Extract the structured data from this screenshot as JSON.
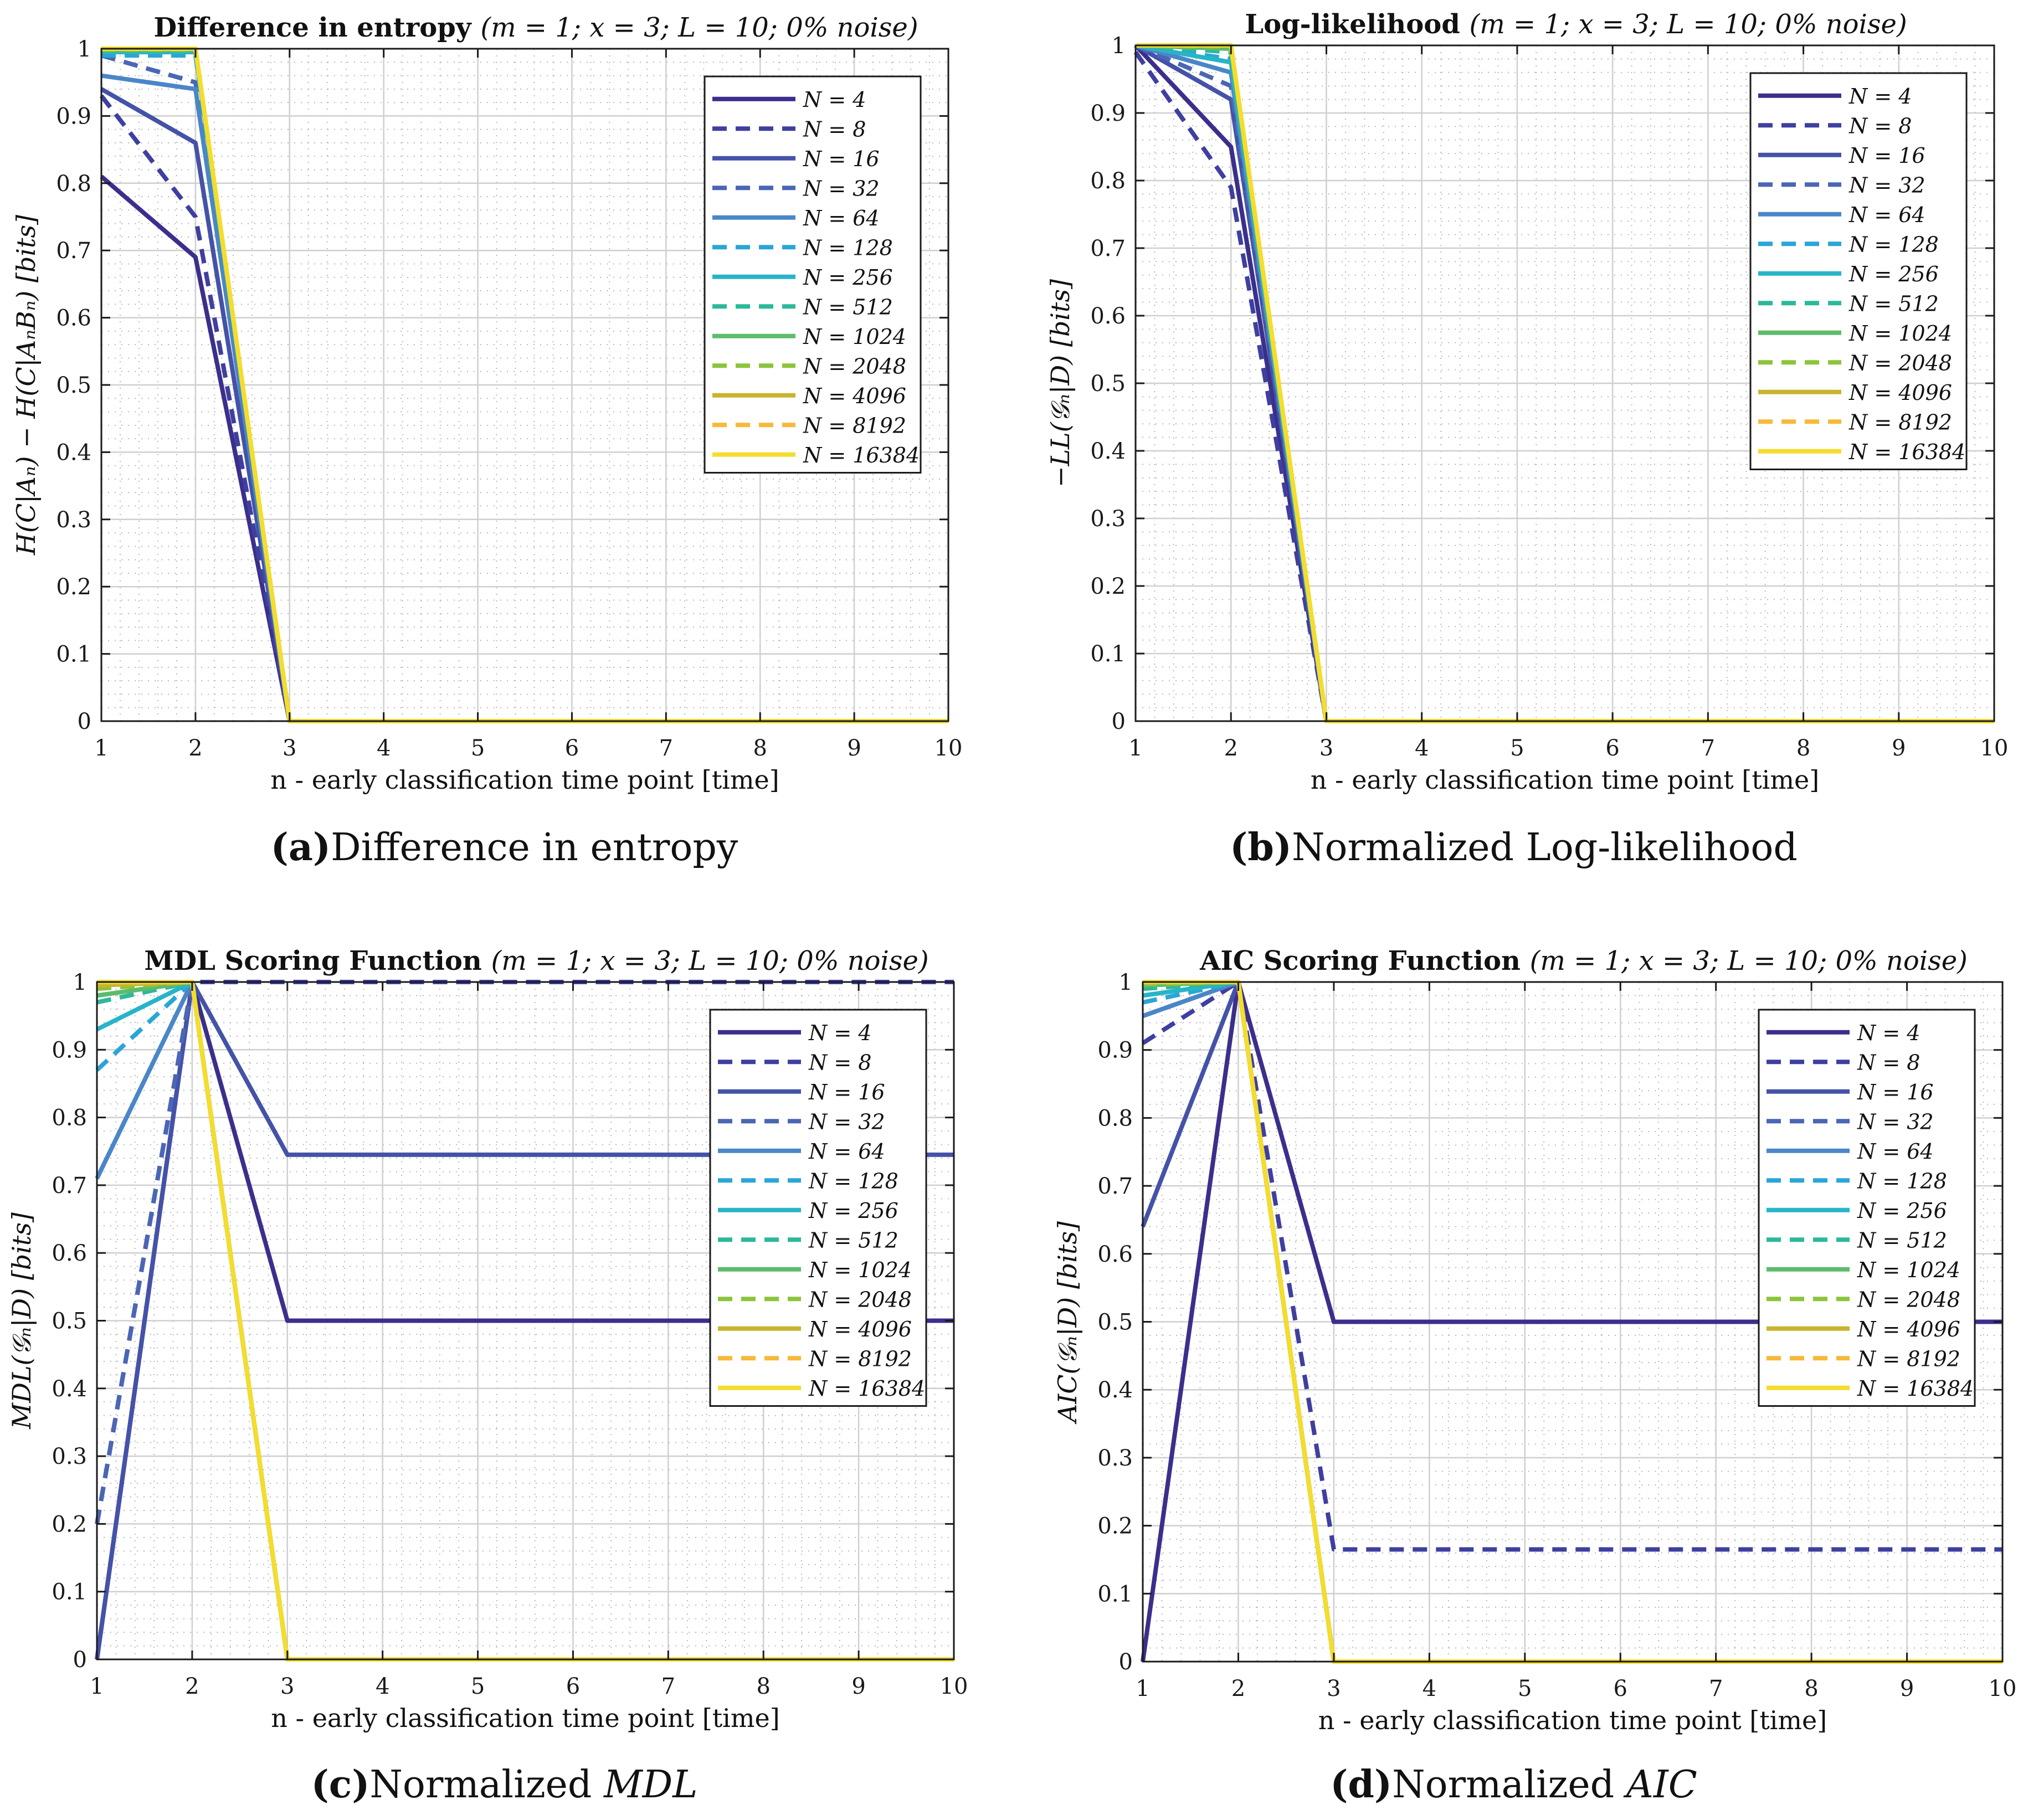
{
  "figure_captions": [
    {
      "label": "(a)",
      "text": "Difference in entropy",
      "math": ""
    },
    {
      "label": "(b)",
      "text": "Normalized Log-likelihood",
      "math": ""
    },
    {
      "label": "(c)",
      "text": "Normalized ",
      "math": "MDL"
    },
    {
      "label": "(d)",
      "text": "Normalized ",
      "math": "AIC"
    }
  ],
  "chart_data": [
    {
      "type": "line",
      "title": "Difference in entropy",
      "title_suffix": "(m = 1; x = 3; L = 10; 0% noise)",
      "xlabel": "n - early classification time point [time]",
      "ylabel": "H(C|Aₙ) − H(C|AₙBₙ) [bits]",
      "xlim": [
        1,
        10
      ],
      "ylim": [
        0,
        1
      ],
      "xticks": [
        "1",
        "2",
        "3",
        "4",
        "5",
        "6",
        "7",
        "8",
        "9",
        "10"
      ],
      "yticks": [
        "0",
        "0.1",
        "0.2",
        "0.3",
        "0.4",
        "0.5",
        "0.6",
        "0.7",
        "0.8",
        "0.9",
        "1"
      ],
      "grid": true,
      "legend_position": "top-right",
      "x": [
        1,
        2,
        3,
        4,
        5,
        6,
        7,
        8,
        9,
        10
      ],
      "series": [
        {
          "name": "N = 4",
          "color": "#3b2f8c",
          "dash": false,
          "values": [
            0.81,
            0.69,
            0,
            0,
            0,
            0,
            0,
            0,
            0,
            0
          ]
        },
        {
          "name": "N = 8",
          "color": "#3f3fa0",
          "dash": true,
          "values": [
            0.93,
            0.75,
            0,
            0,
            0,
            0,
            0,
            0,
            0,
            0
          ]
        },
        {
          "name": "N = 16",
          "color": "#4452a8",
          "dash": false,
          "values": [
            0.94,
            0.86,
            0,
            0,
            0,
            0,
            0,
            0,
            0,
            0
          ]
        },
        {
          "name": "N = 32",
          "color": "#4a66b4",
          "dash": true,
          "values": [
            0.99,
            0.95,
            0,
            0,
            0,
            0,
            0,
            0,
            0,
            0
          ]
        },
        {
          "name": "N = 64",
          "color": "#4a86c8",
          "dash": false,
          "values": [
            0.96,
            0.94,
            0,
            0,
            0,
            0,
            0,
            0,
            0,
            0
          ]
        },
        {
          "name": "N = 128",
          "color": "#2aa6d6",
          "dash": true,
          "values": [
            0.99,
            0.99,
            0,
            0,
            0,
            0,
            0,
            0,
            0,
            0
          ]
        },
        {
          "name": "N = 256",
          "color": "#28b4c8",
          "dash": false,
          "values": [
            0.995,
            0.995,
            0,
            0,
            0,
            0,
            0,
            0,
            0,
            0
          ]
        },
        {
          "name": "N = 512",
          "color": "#2cb99a",
          "dash": true,
          "values": [
            0.997,
            0.997,
            0,
            0,
            0,
            0,
            0,
            0,
            0,
            0
          ]
        },
        {
          "name": "N = 1024",
          "color": "#5cbc6c",
          "dash": false,
          "values": [
            0.998,
            0.998,
            0,
            0,
            0,
            0,
            0,
            0,
            0,
            0
          ]
        },
        {
          "name": "N = 2048",
          "color": "#8cc43a",
          "dash": true,
          "values": [
            0.999,
            0.999,
            0,
            0,
            0,
            0,
            0,
            0,
            0,
            0
          ]
        },
        {
          "name": "N = 4096",
          "color": "#c8b42e",
          "dash": false,
          "values": [
            1,
            1,
            0,
            0,
            0,
            0,
            0,
            0,
            0,
            0
          ]
        },
        {
          "name": "N = 8192",
          "color": "#f6b93a",
          "dash": true,
          "values": [
            1,
            1,
            0,
            0,
            0,
            0,
            0,
            0,
            0,
            0
          ]
        },
        {
          "name": "N = 16384",
          "color": "#f4dd2c",
          "dash": false,
          "values": [
            1,
            1,
            0,
            0,
            0,
            0,
            0,
            0,
            0,
            0
          ]
        }
      ]
    },
    {
      "type": "line",
      "title": "Log-likelihood",
      "title_suffix": "(m = 1; x = 3; L = 10; 0% noise)",
      "xlabel": "n - early classification time point [time]",
      "ylabel": "−LL(𝒢ₙ|D) [bits]",
      "xlim": [
        1,
        10
      ],
      "ylim": [
        0,
        1
      ],
      "xticks": [
        "1",
        "2",
        "3",
        "4",
        "5",
        "6",
        "7",
        "8",
        "9",
        "10"
      ],
      "yticks": [
        "0",
        "0.1",
        "0.2",
        "0.3",
        "0.4",
        "0.5",
        "0.6",
        "0.7",
        "0.8",
        "0.9",
        "1"
      ],
      "grid": true,
      "legend_position": "top-right",
      "x": [
        1,
        2,
        3,
        4,
        5,
        6,
        7,
        8,
        9,
        10
      ],
      "series": [
        {
          "name": "N = 4",
          "color": "#3b2f8c",
          "dash": false,
          "values": [
            1,
            0.85,
            0,
            0,
            0,
            0,
            0,
            0,
            0,
            0
          ]
        },
        {
          "name": "N = 8",
          "color": "#3f3fa0",
          "dash": true,
          "values": [
            0.99,
            0.79,
            0,
            0,
            0,
            0,
            0,
            0,
            0,
            0
          ]
        },
        {
          "name": "N = 16",
          "color": "#4452a8",
          "dash": false,
          "values": [
            1,
            0.92,
            0,
            0,
            0,
            0,
            0,
            0,
            0,
            0
          ]
        },
        {
          "name": "N = 32",
          "color": "#4a66b4",
          "dash": true,
          "values": [
            1,
            0.94,
            0,
            0,
            0,
            0,
            0,
            0,
            0,
            0
          ]
        },
        {
          "name": "N = 64",
          "color": "#4a86c8",
          "dash": false,
          "values": [
            1,
            0.96,
            0,
            0,
            0,
            0,
            0,
            0,
            0,
            0
          ]
        },
        {
          "name": "N = 128",
          "color": "#2aa6d6",
          "dash": true,
          "values": [
            1,
            0.98,
            0,
            0,
            0,
            0,
            0,
            0,
            0,
            0
          ]
        },
        {
          "name": "N = 256",
          "color": "#28b4c8",
          "dash": false,
          "values": [
            1,
            0.975,
            0,
            0,
            0,
            0,
            0,
            0,
            0,
            0
          ]
        },
        {
          "name": "N = 512",
          "color": "#2cb99a",
          "dash": true,
          "values": [
            1,
            0.99,
            0,
            0,
            0,
            0,
            0,
            0,
            0,
            0
          ]
        },
        {
          "name": "N = 1024",
          "color": "#5cbc6c",
          "dash": false,
          "values": [
            1,
            0.995,
            0,
            0,
            0,
            0,
            0,
            0,
            0,
            0
          ]
        },
        {
          "name": "N = 2048",
          "color": "#8cc43a",
          "dash": true,
          "values": [
            1,
            0.998,
            0,
            0,
            0,
            0,
            0,
            0,
            0,
            0
          ]
        },
        {
          "name": "N = 4096",
          "color": "#c8b42e",
          "dash": false,
          "values": [
            1,
            1,
            0,
            0,
            0,
            0,
            0,
            0,
            0,
            0
          ]
        },
        {
          "name": "N = 8192",
          "color": "#f6b93a",
          "dash": true,
          "values": [
            1,
            1,
            0,
            0,
            0,
            0,
            0,
            0,
            0,
            0
          ]
        },
        {
          "name": "N = 16384",
          "color": "#f4dd2c",
          "dash": false,
          "values": [
            1,
            1,
            0,
            0,
            0,
            0,
            0,
            0,
            0,
            0
          ]
        }
      ]
    },
    {
      "type": "line",
      "title": "MDL Scoring Function",
      "title_suffix": "(m = 1; x = 3; L = 10; 0% noise)",
      "xlabel": "n - early classification time point [time]",
      "ylabel": "MDL(𝒢ₙ|D) [bits]",
      "xlim": [
        1,
        10
      ],
      "ylim": [
        0,
        1
      ],
      "xticks": [
        "1",
        "2",
        "3",
        "4",
        "5",
        "6",
        "7",
        "8",
        "9",
        "10"
      ],
      "yticks": [
        "0",
        "0.1",
        "0.2",
        "0.3",
        "0.4",
        "0.5",
        "0.6",
        "0.7",
        "0.8",
        "0.9",
        "1"
      ],
      "grid": true,
      "legend_position": "top-right",
      "x": [
        1,
        2,
        3,
        4,
        5,
        6,
        7,
        8,
        9,
        10
      ],
      "series": [
        {
          "name": "N = 4",
          "color": "#3b2f8c",
          "dash": false,
          "values": [
            0,
            1,
            0.5,
            0.5,
            0.5,
            0.5,
            0.5,
            0.5,
            0.5,
            0.5
          ]
        },
        {
          "name": "N = 8",
          "color": "#3f3fa0",
          "dash": true,
          "values": [
            0.2,
            1,
            1,
            1,
            1,
            1,
            1,
            1,
            1,
            1
          ]
        },
        {
          "name": "N = 16",
          "color": "#4452a8",
          "dash": false,
          "values": [
            0,
            1,
            0.745,
            0.745,
            0.745,
            0.745,
            0.745,
            0.745,
            0.745,
            0.745
          ]
        },
        {
          "name": "N = 32",
          "color": "#4a66b4",
          "dash": true,
          "values": [
            0.2,
            1,
            0,
            0,
            0,
            0,
            0,
            0,
            0,
            0
          ]
        },
        {
          "name": "N = 64",
          "color": "#4a86c8",
          "dash": false,
          "values": [
            0.71,
            1,
            0,
            0,
            0,
            0,
            0,
            0,
            0,
            0
          ]
        },
        {
          "name": "N = 128",
          "color": "#2aa6d6",
          "dash": true,
          "values": [
            0.87,
            1,
            0,
            0,
            0,
            0,
            0,
            0,
            0,
            0
          ]
        },
        {
          "name": "N = 256",
          "color": "#28b4c8",
          "dash": false,
          "values": [
            0.93,
            1,
            0,
            0,
            0,
            0,
            0,
            0,
            0,
            0
          ]
        },
        {
          "name": "N = 512",
          "color": "#2cb99a",
          "dash": true,
          "values": [
            0.97,
            1,
            0,
            0,
            0,
            0,
            0,
            0,
            0,
            0
          ]
        },
        {
          "name": "N = 1024",
          "color": "#5cbc6c",
          "dash": false,
          "values": [
            0.98,
            1,
            0,
            0,
            0,
            0,
            0,
            0,
            0,
            0
          ]
        },
        {
          "name": "N = 2048",
          "color": "#8cc43a",
          "dash": true,
          "values": [
            0.99,
            1,
            0,
            0,
            0,
            0,
            0,
            0,
            0,
            0
          ]
        },
        {
          "name": "N = 4096",
          "color": "#c8b42e",
          "dash": false,
          "values": [
            0.995,
            1,
            0,
            0,
            0,
            0,
            0,
            0,
            0,
            0
          ]
        },
        {
          "name": "N = 8192",
          "color": "#f6b93a",
          "dash": true,
          "values": [
            1,
            1,
            0,
            0,
            0,
            0,
            0,
            0,
            0,
            0
          ]
        },
        {
          "name": "N = 16384",
          "color": "#f4dd2c",
          "dash": false,
          "values": [
            1,
            1,
            0,
            0,
            0,
            0,
            0,
            0,
            0,
            0
          ]
        }
      ]
    },
    {
      "type": "line",
      "title": "AIC Scoring Function",
      "title_suffix": "(m = 1; x = 3; L = 10; 0% noise)",
      "xlabel": "n - early classification time point [time]",
      "ylabel": "AIC(𝒢ₙ|D) [bits]",
      "xlim": [
        1,
        10
      ],
      "ylim": [
        0,
        1
      ],
      "xticks": [
        "1",
        "2",
        "3",
        "4",
        "5",
        "6",
        "7",
        "8",
        "9",
        "10"
      ],
      "yticks": [
        "0",
        "0.1",
        "0.2",
        "0.3",
        "0.4",
        "0.5",
        "0.6",
        "0.7",
        "0.8",
        "0.9",
        "1"
      ],
      "grid": true,
      "legend_position": "top-right",
      "x": [
        1,
        2,
        3,
        4,
        5,
        6,
        7,
        8,
        9,
        10
      ],
      "series": [
        {
          "name": "N = 4",
          "color": "#3b2f8c",
          "dash": false,
          "values": [
            0,
            1,
            0.5,
            0.5,
            0.5,
            0.5,
            0.5,
            0.5,
            0.5,
            0.5
          ]
        },
        {
          "name": "N = 8",
          "color": "#3f3fa0",
          "dash": true,
          "values": [
            0.91,
            1,
            0.165,
            0.165,
            0.165,
            0.165,
            0.165,
            0.165,
            0.165,
            0.165
          ]
        },
        {
          "name": "N = 16",
          "color": "#4452a8",
          "dash": false,
          "values": [
            0.64,
            1,
            0,
            0,
            0,
            0,
            0,
            0,
            0,
            0
          ]
        },
        {
          "name": "N = 32",
          "color": "#4a66b4",
          "dash": true,
          "values": [
            0.95,
            1,
            0,
            0,
            0,
            0,
            0,
            0,
            0,
            0
          ]
        },
        {
          "name": "N = 64",
          "color": "#4a86c8",
          "dash": false,
          "values": [
            0.95,
            1,
            0,
            0,
            0,
            0,
            0,
            0,
            0,
            0
          ]
        },
        {
          "name": "N = 128",
          "color": "#2aa6d6",
          "dash": true,
          "values": [
            0.97,
            1,
            0,
            0,
            0,
            0,
            0,
            0,
            0,
            0
          ]
        },
        {
          "name": "N = 256",
          "color": "#28b4c8",
          "dash": false,
          "values": [
            0.98,
            1,
            0,
            0,
            0,
            0,
            0,
            0,
            0,
            0
          ]
        },
        {
          "name": "N = 512",
          "color": "#2cb99a",
          "dash": true,
          "values": [
            0.99,
            1,
            0,
            0,
            0,
            0,
            0,
            0,
            0,
            0
          ]
        },
        {
          "name": "N = 1024",
          "color": "#5cbc6c",
          "dash": false,
          "values": [
            0.995,
            1,
            0,
            0,
            0,
            0,
            0,
            0,
            0,
            0
          ]
        },
        {
          "name": "N = 2048",
          "color": "#8cc43a",
          "dash": true,
          "values": [
            0.997,
            1,
            0,
            0,
            0,
            0,
            0,
            0,
            0,
            0
          ]
        },
        {
          "name": "N = 4096",
          "color": "#c8b42e",
          "dash": false,
          "values": [
            1,
            1,
            0,
            0,
            0,
            0,
            0,
            0,
            0,
            0
          ]
        },
        {
          "name": "N = 8192",
          "color": "#f6b93a",
          "dash": true,
          "values": [
            1,
            1,
            0,
            0,
            0,
            0,
            0,
            0,
            0,
            0
          ]
        },
        {
          "name": "N = 16384",
          "color": "#f4dd2c",
          "dash": false,
          "values": [
            1,
            1,
            0,
            0,
            0,
            0,
            0,
            0,
            0,
            0
          ]
        }
      ]
    }
  ]
}
